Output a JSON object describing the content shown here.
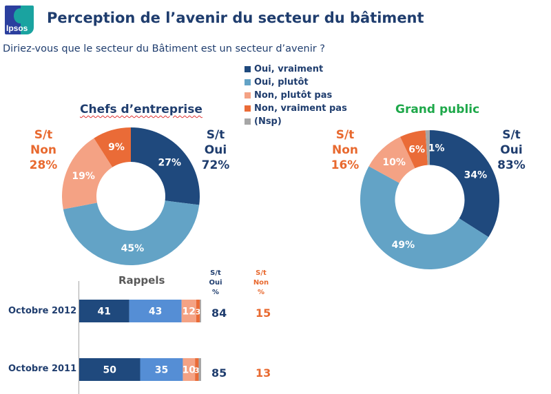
{
  "header": {
    "logo_text": "Ipsos",
    "title": "Perception de l’avenir du secteur du bâtiment",
    "question": "Diriez-vous que le secteur du Bâtiment est un secteur d’avenir ?"
  },
  "colors": {
    "oui_vraiment": "#1f497d",
    "oui_plutot": "#63a3c6",
    "non_plutot_pas": "#f4a284",
    "non_vraiment_pas": "#ea6b37",
    "nsp": "#a6a6a6",
    "navy_text": "#1f3d6e",
    "orange_text": "#e8692f",
    "green_text": "#1ea84a",
    "bar_oui_plutot": "#558ed5"
  },
  "legend": [
    {
      "label": "Oui, vraiment",
      "key": "oui_vraiment"
    },
    {
      "label": "Oui, plutôt",
      "key": "oui_plutot"
    },
    {
      "label": "Non, plutôt pas",
      "key": "non_plutot_pas"
    },
    {
      "label": "Non, vraiment pas",
      "key": "non_vraiment_pas"
    },
    {
      "label": "(Nsp)",
      "key": "nsp"
    }
  ],
  "chart_data": [
    {
      "type": "pie",
      "subtype": "donut",
      "title": "Chefs d’entreprise",
      "categories": [
        "Oui, vraiment",
        "Oui, plutôt",
        "Non, plutôt pas",
        "Non, vraiment pas"
      ],
      "values": [
        27,
        45,
        19,
        9
      ],
      "labels": [
        "27%",
        "45%",
        "19%",
        "9%"
      ],
      "subtotals": {
        "oui": {
          "line1": "S/t",
          "line2": "Oui",
          "value": "72%"
        },
        "non": {
          "line1": "S/t",
          "line2": "Non",
          "value": "28%"
        }
      }
    },
    {
      "type": "pie",
      "subtype": "donut",
      "title": "Grand public",
      "categories": [
        "Oui, vraiment",
        "Oui, plutôt",
        "Non, plutôt pas",
        "Non, vraiment pas",
        "(Nsp)"
      ],
      "values": [
        34,
        49,
        10,
        6,
        1
      ],
      "labels": [
        "34%",
        "49%",
        "10%",
        "6%",
        "1%"
      ],
      "subtotals": {
        "oui": {
          "line1": "S/t",
          "line2": "Oui",
          "value": "83%"
        },
        "non": {
          "line1": "S/t",
          "line2": "Non",
          "value": "16%"
        }
      }
    },
    {
      "type": "bar",
      "subtype": "stacked-horizontal",
      "title": "Rappels",
      "categories": [
        "Octobre 2012",
        "Octobre 2011"
      ],
      "series": [
        {
          "name": "Oui, vraiment",
          "values": [
            41,
            50
          ]
        },
        {
          "name": "Oui, plutôt",
          "values": [
            43,
            35
          ]
        },
        {
          "name": "Non, plutôt pas",
          "values": [
            12,
            10
          ]
        },
        {
          "name": "Non, vraiment pas",
          "values": [
            3,
            3
          ]
        },
        {
          "name": "(Nsp)",
          "values": [
            1,
            2
          ]
        }
      ],
      "columns": {
        "oui": {
          "line1": "S/t",
          "line2": "Oui",
          "line3": "%",
          "values": [
            84,
            85
          ]
        },
        "non": {
          "line1": "S/t",
          "line2": "Non",
          "line3": "%",
          "values": [
            15,
            13
          ]
        }
      }
    }
  ]
}
